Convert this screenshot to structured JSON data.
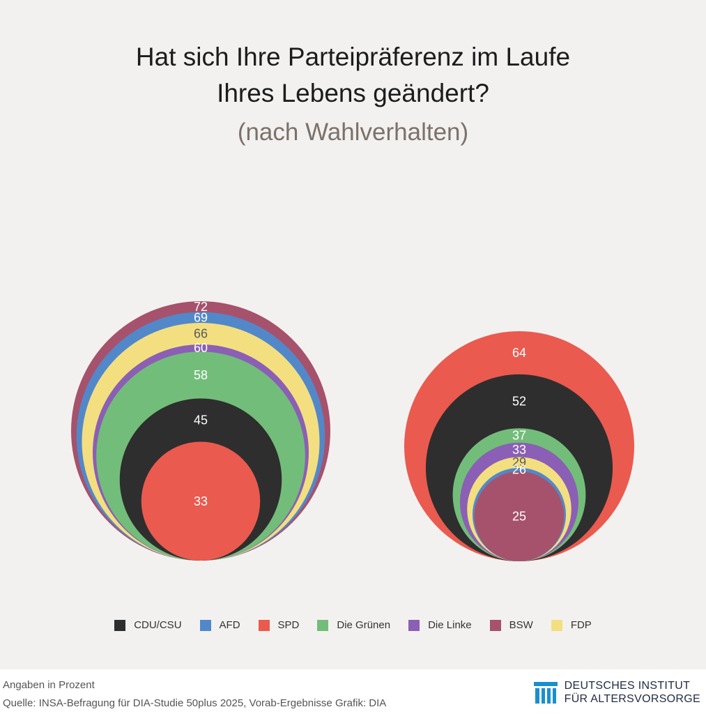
{
  "title_lines": [
    "Hat sich Ihre Parteipräferenz im Laufe",
    "Ihres Lebens geändert?"
  ],
  "subtitle": "(nach Wahlverhalten)",
  "colors": {
    "CDU/CSU": "#2e2e2e",
    "AFD": "#5288c9",
    "SPD": "#ea5a4f",
    "Die Grünen": "#73bd7a",
    "Die Linke": "#8b5fb5",
    "BSW": "#a6526c",
    "FDP": "#f3df80"
  },
  "chart_data": [
    {
      "type": "bubble",
      "unit": "Angaben in Prozent",
      "series": [
        {
          "name": "BSW",
          "value": 72
        },
        {
          "name": "AFD",
          "value": 69
        },
        {
          "name": "FDP",
          "value": 66
        },
        {
          "name": "Die Linke",
          "value": 60
        },
        {
          "name": "Die Grünen",
          "value": 58
        },
        {
          "name": "CDU/CSU",
          "value": 45
        },
        {
          "name": "SPD",
          "value": 33
        }
      ]
    },
    {
      "type": "bubble",
      "unit": "Angaben in Prozent",
      "series": [
        {
          "name": "SPD",
          "value": 64
        },
        {
          "name": "CDU/CSU",
          "value": 52
        },
        {
          "name": "Die Grünen",
          "value": 37
        },
        {
          "name": "Die Linke",
          "value": 33
        },
        {
          "name": "FDP",
          "value": 29
        },
        {
          "name": "AFD",
          "value": 26
        },
        {
          "name": "BSW",
          "value": 25
        }
      ]
    }
  ],
  "legend": [
    "CDU/CSU",
    "AFD",
    "SPD",
    "Die Grünen",
    "Die Linke",
    "BSW",
    "FDP"
  ],
  "footer": {
    "note": "Angaben in Prozent",
    "source": "Quelle: INSA-Befragung für DIA-Studie 50plus 2025, Vorab-Ergebnisse  Grafik: DIA",
    "logo_line1": "DEUTSCHES INSTITUT",
    "logo_line2": "FÜR ALTERSVORSORGE"
  }
}
